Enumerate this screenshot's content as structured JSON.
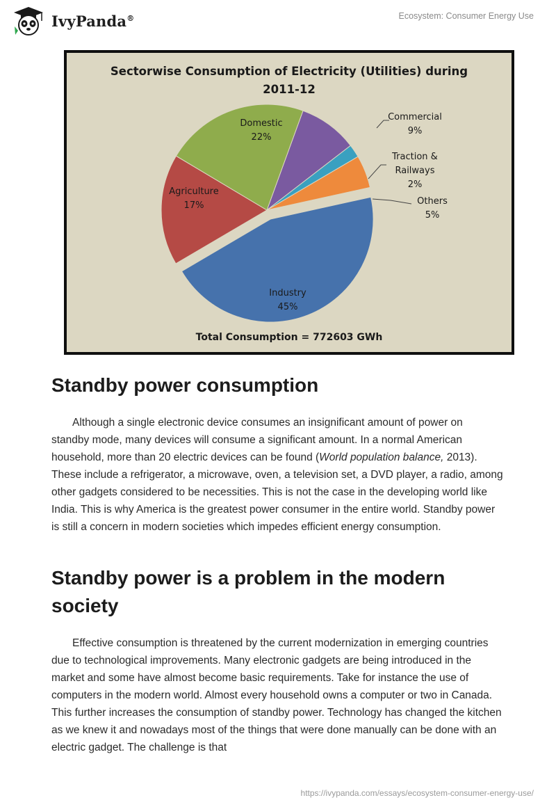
{
  "header": {
    "brand": "IvyPanda",
    "brand_mark": "®",
    "page_title": "Ecosystem: Consumer Energy Use"
  },
  "chart_data": {
    "type": "pie",
    "title_line1": "Sectorwise Consumption of Electricity (Utilities) during",
    "title_line2": "2011-12",
    "total_label": "Total  Consumption = 772603 GWh",
    "slices": [
      {
        "name": "Commercial",
        "percent": 9,
        "label": "9%",
        "color": "#7a5aa0"
      },
      {
        "name": "Traction &",
        "name2": "Railways",
        "percent": 2,
        "label": "2%",
        "color": "#3aa0c0"
      },
      {
        "name": "Others",
        "percent": 5,
        "label": "5%",
        "color": "#ee8a3c"
      },
      {
        "name": "Industry",
        "percent": 45,
        "label": "45%",
        "color": "#4672ac"
      },
      {
        "name": "Agriculture",
        "percent": 17,
        "label": "17%",
        "color": "#b54a45"
      },
      {
        "name": "Domestic",
        "percent": 22,
        "label": "22%",
        "color": "#8fac4c"
      }
    ],
    "background": "#dcd7c2"
  },
  "sections": [
    {
      "heading": "Standby power consumption",
      "paragraph_before_italic": "Although a single electronic device consumes an insignificant amount of power on standby mode, many devices will consume a significant amount. In a normal American household, more than 20 electric devices can be found (",
      "italic": "World population balance,",
      "paragraph_after_italic": " 2013). These include a refrigerator, a microwave, oven, a television set, a DVD player, a radio, among other gadgets considered to be necessities. This is not the case in the developing world like India. This is why America is the greatest power consumer in the entire world. Standby power is still a concern in modern societies which impedes efficient energy consumption."
    },
    {
      "heading": "Standby power is a problem in the modern society",
      "paragraph": "Effective consumption is threatened by the current modernization in emerging countries due to technological improvements. Many electronic gadgets are being introduced in the market and some have almost become basic requirements. Take for instance the use of computers in the modern world. Almost every household owns a computer or two in Canada. This further increases the consumption of standby power. Technology has changed the kitchen as we knew it and nowadays most of the things that were done manually can be done with an electric gadget. The challenge is that"
    }
  ],
  "footer": {
    "url": "https://ivypanda.com/essays/ecosystem-consumer-energy-use/"
  }
}
